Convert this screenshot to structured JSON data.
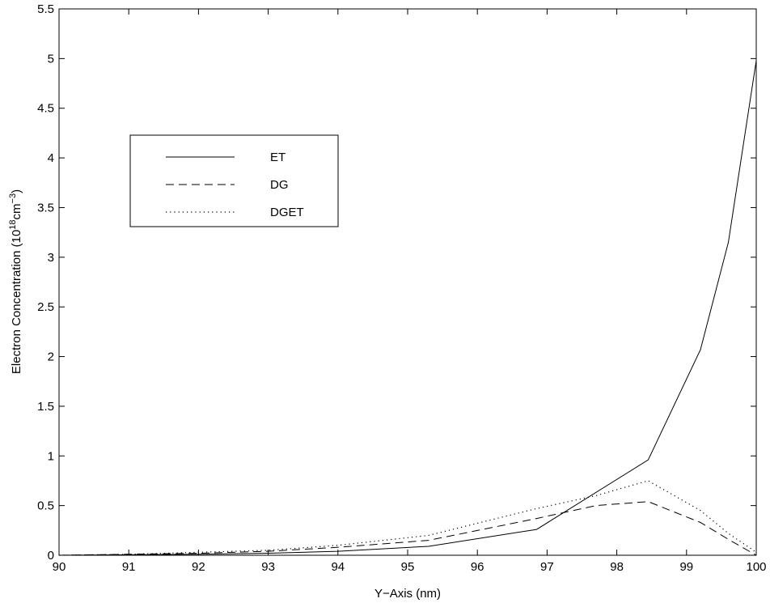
{
  "chart_data": {
    "type": "line",
    "title": "",
    "xlabel": "Y−Axis (nm)",
    "ylabel": {
      "prefix": "Electron Concentration (10",
      "sup1": "18",
      "mid": "cm",
      "sup2": "−3",
      "suffix": ")"
    },
    "xlim": [
      90,
      100
    ],
    "ylim": [
      0,
      5.5
    ],
    "xticks": [
      "90",
      "91",
      "92",
      "93",
      "94",
      "95",
      "96",
      "97",
      "98",
      "99",
      "100"
    ],
    "yticks": [
      "0",
      "0.5",
      "1",
      "1.5",
      "2",
      "2.5",
      "3",
      "3.5",
      "4",
      "4.5",
      "5",
      "5.5"
    ],
    "grid": false,
    "legend_position": "upper-left",
    "series": [
      {
        "name": "ET",
        "style": "solid",
        "x": [
          90,
          91,
          92,
          93,
          94,
          95.3,
          96.85,
          98.45,
          99.2,
          99.6,
          100
        ],
        "y": [
          0.0,
          0.005,
          0.01,
          0.02,
          0.04,
          0.09,
          0.26,
          0.96,
          2.07,
          3.15,
          4.98
        ]
      },
      {
        "name": "DG",
        "style": "dashed",
        "x": [
          90,
          91,
          92,
          93,
          94,
          95.3,
          96.85,
          97.7,
          98.45,
          99.2,
          99.6,
          100
        ],
        "y": [
          0.0,
          0.01,
          0.02,
          0.04,
          0.08,
          0.15,
          0.37,
          0.5,
          0.54,
          0.33,
          0.16,
          0.0
        ]
      },
      {
        "name": "DGET",
        "style": "dotted",
        "x": [
          90,
          91,
          92,
          93,
          94,
          95.3,
          96.85,
          97.7,
          98.45,
          99.2,
          99.6,
          100
        ],
        "y": [
          0.0,
          0.01,
          0.03,
          0.05,
          0.1,
          0.2,
          0.47,
          0.6,
          0.75,
          0.45,
          0.22,
          0.03
        ]
      }
    ]
  }
}
